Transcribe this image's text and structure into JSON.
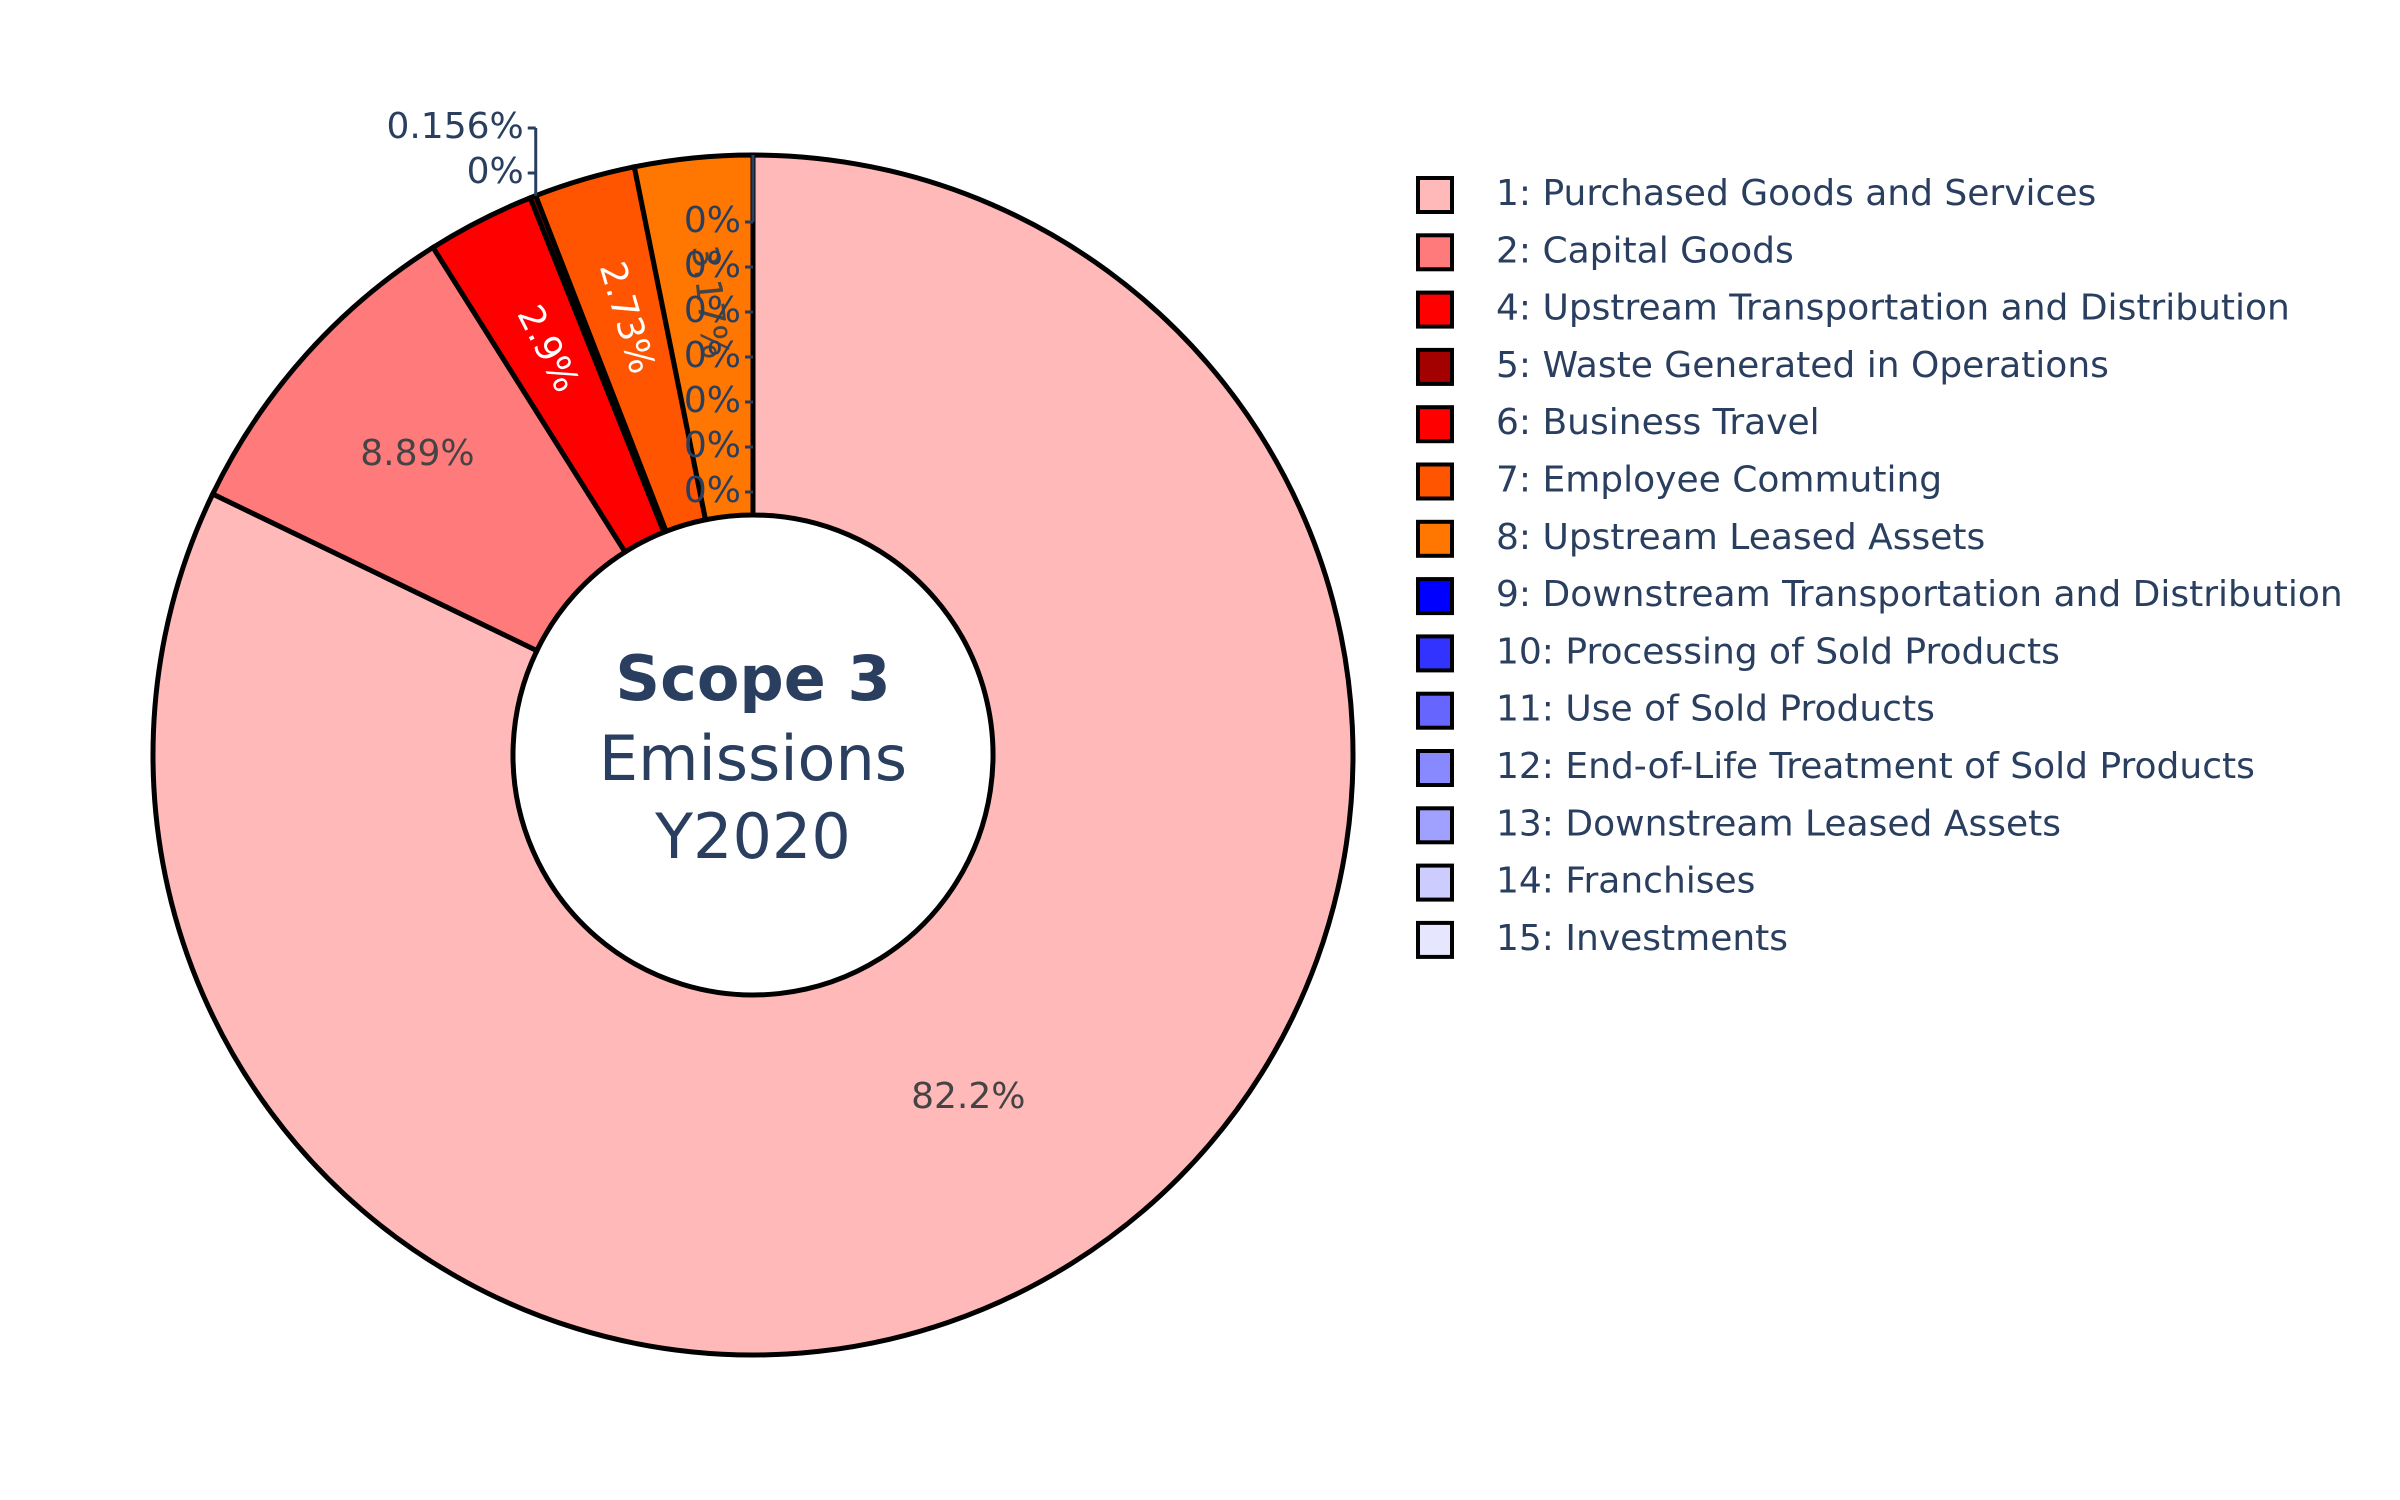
{
  "chart_data": {
    "type": "pie",
    "hole": true,
    "center_title": {
      "bold_line": "Scope 3",
      "line2": "Emissions",
      "line3": "Y2020"
    },
    "legend_position": "right",
    "slices": [
      {
        "label": "1: Purchased Goods and Services",
        "value": 82.2,
        "text": "82.2%",
        "color": "#ffb9b9",
        "text_color": "#444444"
      },
      {
        "label": "2: Capital Goods",
        "value": 8.89,
        "text": "8.89%",
        "color": "#ff7a7a",
        "text_color": "#444444"
      },
      {
        "label": "4: Upstream Transportation and Distribution",
        "value": 2.9,
        "text": "2.9%",
        "color": "#ff0000",
        "text_color": "#ffffff"
      },
      {
        "label": "5: Waste Generated in Operations",
        "value": 0.156,
        "text": "0.156%",
        "color": "#a30000",
        "text_color": "#2a3f5f"
      },
      {
        "label": "6: Business Travel",
        "value": 0,
        "text": "0%",
        "color": "#ff0000",
        "text_color": "#2a3f5f"
      },
      {
        "label": "7: Employee Commuting",
        "value": 2.73,
        "text": "2.73%",
        "color": "#ff5500",
        "text_color": "#ffffff"
      },
      {
        "label": "8: Upstream Leased Assets",
        "value": 3.17,
        "text": "3.17%",
        "color": "#ff7700",
        "text_color": "#444444"
      },
      {
        "label": "9: Downstream Transportation and Distribution",
        "value": 0,
        "text": "0%",
        "color": "#0000ff",
        "text_color": "#2a3f5f"
      },
      {
        "label": "10: Processing of Sold Products",
        "value": 0,
        "text": "0%",
        "color": "#3333ff",
        "text_color": "#2a3f5f"
      },
      {
        "label": "11: Use of Sold Products",
        "value": 0,
        "text": "0%",
        "color": "#6666ff",
        "text_color": "#2a3f5f"
      },
      {
        "label": "12: End-of-Life Treatment of Sold Products",
        "value": 0,
        "text": "0%",
        "color": "#8888ff",
        "text_color": "#2a3f5f"
      },
      {
        "label": "13: Downstream Leased Assets",
        "value": 0,
        "text": "0%",
        "color": "#a0a0ff",
        "text_color": "#2a3f5f"
      },
      {
        "label": "14: Franchises",
        "value": 0,
        "text": "0%",
        "color": "#ccccff",
        "text_color": "#2a3f5f"
      },
      {
        "label": "15: Investments",
        "value": 0,
        "text": "0%",
        "color": "#e6e6ff",
        "text_color": "#2a3f5f"
      }
    ]
  }
}
